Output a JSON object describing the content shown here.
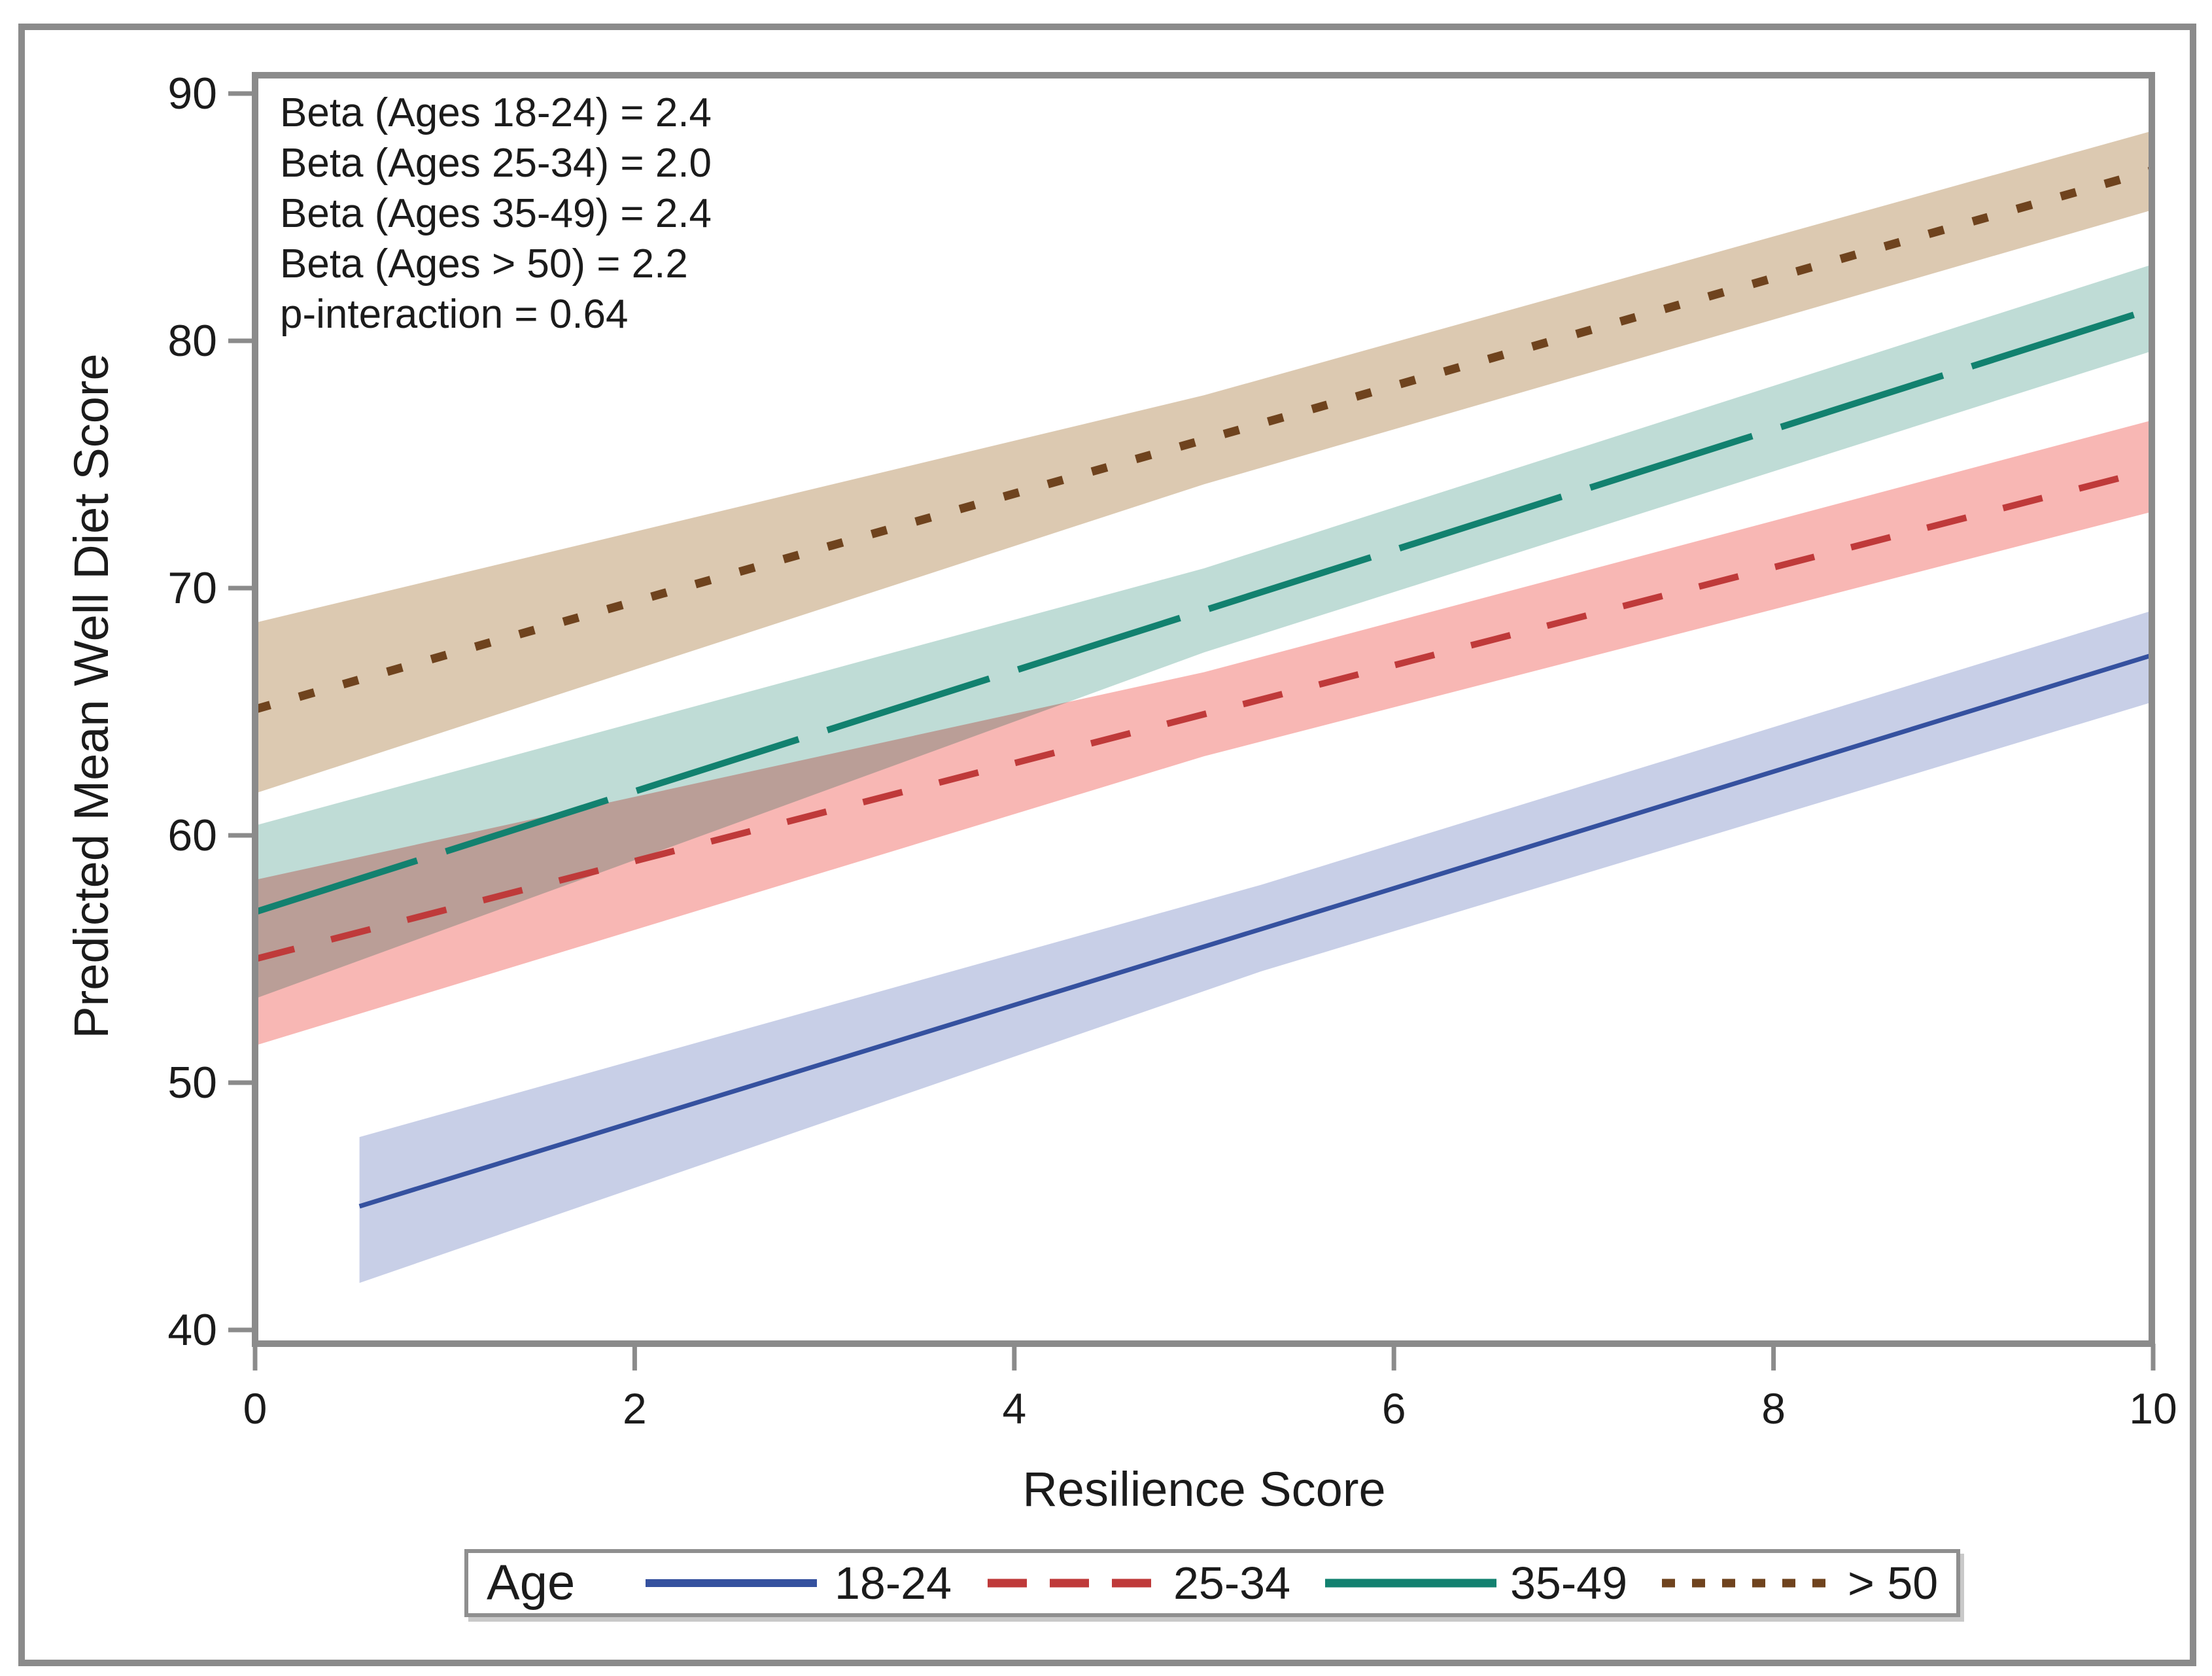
{
  "chart_data": {
    "type": "line",
    "title": "",
    "xlabel": "Resilience Score",
    "ylabel": "Predicted Mean Well Diet Score",
    "xlim": [
      0,
      10
    ],
    "ylim": [
      40,
      90
    ],
    "x_ticks": [
      "0",
      "2",
      "4",
      "6",
      "8",
      "10"
    ],
    "y_ticks": [
      "40",
      "50",
      "60",
      "70",
      "80",
      "90"
    ],
    "grid": false,
    "legend_title": "Age",
    "legend_position": "bottom",
    "annotations": [
      "Beta (Ages 18-24) = 2.4",
      "Beta (Ages 25-34) = 2.0",
      "Beta (Ages 35-49) = 2.4",
      "Beta (Ages > 50) = 2.2",
      "p-interaction = 0.64"
    ],
    "p_interaction": 0.64,
    "series": [
      {
        "name": "18-24",
        "beta": 2.4,
        "color": "#35519f",
        "band_color": "#c8cfe7",
        "dash": "solid",
        "line": {
          "x": [
            0.55,
            10
          ],
          "y": [
            45.0,
            67.3
          ]
        },
        "band": {
          "x": [
            0.55,
            5.3,
            10
          ],
          "lo": [
            41.9,
            54.5,
            65.4
          ],
          "hi": [
            47.8,
            58.0,
            69.1
          ]
        }
      },
      {
        "name": "25-34",
        "beta": 2.0,
        "color": "#bf3a3a",
        "band_color": "#f8b7b4",
        "dash": "dashed",
        "line": {
          "x": [
            0,
            10
          ],
          "y": [
            55.0,
            74.8
          ]
        },
        "band": {
          "x": [
            0,
            5,
            10
          ],
          "lo": [
            51.5,
            63.2,
            73.1
          ],
          "hi": [
            58.2,
            66.6,
            76.8
          ]
        }
      },
      {
        "name": "35-49",
        "beta": 2.4,
        "color": "#12816f",
        "band_color": "#bfdcd6",
        "dash": "long-dash",
        "line": {
          "x": [
            0,
            10
          ],
          "y": [
            56.9,
            81.3
          ]
        },
        "band": {
          "x": [
            0,
            5,
            10
          ],
          "lo": [
            53.4,
            67.4,
            79.6
          ],
          "hi": [
            60.4,
            70.8,
            83.1
          ]
        }
      },
      {
        "name": "> 50",
        "beta": 2.2,
        "color": "#6f431e",
        "band_color": "#dcc9b1",
        "dash": "dotted",
        "line": {
          "x": [
            0,
            10
          ],
          "y": [
            65.1,
            86.9
          ]
        },
        "band": {
          "x": [
            0,
            5,
            10
          ],
          "lo": [
            61.7,
            74.2,
            85.3
          ],
          "hi": [
            68.6,
            77.8,
            88.5
          ]
        }
      }
    ]
  },
  "frame": {
    "border_color": "#8b8b8b",
    "text_color": "#1b1b1b"
  }
}
